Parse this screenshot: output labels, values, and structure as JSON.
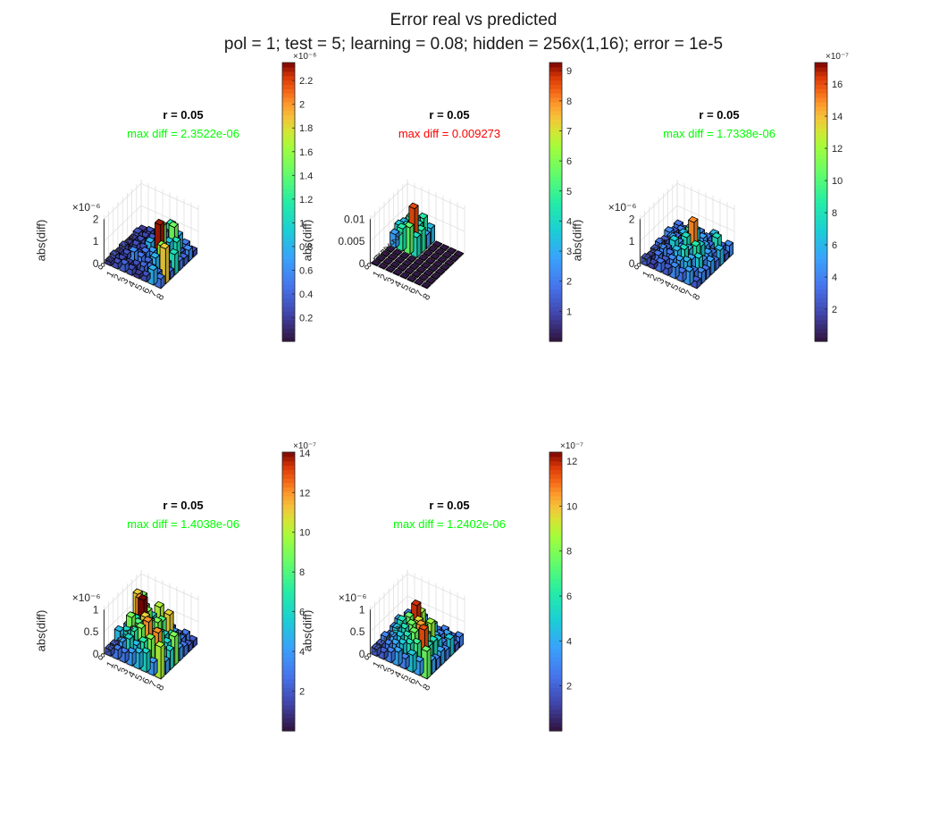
{
  "figure": {
    "title_line1": "Error real vs predicted",
    "title_line2": "pol = 1; test = 5; learning = 0.08; hidden = 256x(1,16); error = 1e-5"
  },
  "colors": {
    "title_black": "#000000",
    "maxdiff_ok": "#00ff00",
    "maxdiff_bad": "#ff0000",
    "axis_text": "#262626",
    "bar_edge": "#000000",
    "colormap": "turbo"
  },
  "chart_data": [
    {
      "type": "bar3",
      "title": "r = 0.05",
      "subtitle": "max diff = 2.3522e-06",
      "subtitle_color": "#00ff00",
      "zlabel": "abs(diff)",
      "z_exponent": "×10⁻⁶",
      "zticks": [
        "0",
        "1",
        "2"
      ],
      "xticks": [
        "1",
        "2",
        "3",
        "4",
        "5",
        "6",
        "7",
        "8"
      ],
      "yticks": [
        "1",
        "2",
        "3",
        "4",
        "5",
        "6",
        "7",
        "8"
      ],
      "zlim": [
        0,
        2.4
      ],
      "values_scale": "1e-6",
      "values": [
        [
          0.2,
          0.3,
          0.4,
          0.6,
          1.2,
          0.8,
          0.5,
          0.3
        ],
        [
          0.3,
          0.25,
          0.35,
          0.7,
          0.4,
          1.5,
          0.3,
          0.6
        ],
        [
          0.2,
          0.3,
          0.2,
          0.3,
          1.6,
          0.9,
          1.1,
          0.4
        ],
        [
          0.2,
          0.3,
          0.3,
          0.8,
          0.4,
          0.5,
          0.3,
          0.5
        ],
        [
          0.3,
          0.2,
          0.25,
          0.5,
          0.7,
          2.35,
          0.4,
          1.1
        ],
        [
          0.2,
          0.3,
          0.6,
          0.5,
          0.4,
          0.8,
          1.6,
          0.4
        ],
        [
          0.3,
          0.25,
          0.2,
          0.3,
          0.4,
          0.5,
          0.4,
          1.9
        ],
        [
          0.2,
          0.3,
          0.4,
          0.3,
          0.2,
          0.3,
          0.8,
          0.5
        ]
      ],
      "colorbar": {
        "min": 0,
        "max": 2.3522,
        "ticks": [
          "0.2",
          "0.4",
          "0.6",
          "0.8",
          "1",
          "1.2",
          "1.4",
          "1.6",
          "1.8",
          "2",
          "2.2"
        ],
        "exponent": "×10⁻⁶"
      }
    },
    {
      "type": "bar3",
      "title": "r = 0.05",
      "subtitle": "max diff = 0.009273",
      "subtitle_color": "#ff0000",
      "zlabel": "abs(diff)",
      "z_exponent": "",
      "zticks": [
        "0",
        "0.005",
        "0.01"
      ],
      "xticks": [
        "1",
        "2",
        "3",
        "4",
        "5",
        "6",
        "7",
        "8"
      ],
      "yticks": [
        "1",
        "2",
        "3",
        "4",
        "5",
        "6",
        "7",
        "8"
      ],
      "zlim": [
        0,
        0.01
      ],
      "values_scale": "1",
      "values": [
        [
          0.003,
          0.004,
          0.005,
          0.0035,
          0.0001,
          0.0001,
          0.0001,
          0.0001
        ],
        [
          0.0035,
          0.0055,
          0.0045,
          0.003,
          0.0001,
          0.0001,
          0.0001,
          0.0001
        ],
        [
          0.004,
          0.0045,
          0.009273,
          0.005,
          0.0001,
          0.0001,
          0.0001,
          0.0001
        ],
        [
          0.003,
          0.005,
          0.006,
          0.0045,
          0.0001,
          0.0001,
          0.0001,
          0.0001
        ],
        [
          0.0001,
          0.0001,
          0.0001,
          0.0001,
          0.0001,
          0.0001,
          0.0001,
          0.0001
        ],
        [
          0.0001,
          0.0001,
          0.0001,
          0.0001,
          0.0001,
          0.0001,
          0.0001,
          0.0001
        ],
        [
          0.0001,
          0.0001,
          0.0001,
          0.0001,
          0.0001,
          0.0001,
          0.0001,
          0.0001
        ],
        [
          0.0001,
          0.0001,
          0.0001,
          0.0001,
          0.0001,
          0.0001,
          0.0001,
          0.0001
        ]
      ],
      "colorbar": {
        "min": 0,
        "max": 9.273,
        "ticks": [
          "1",
          "2",
          "3",
          "4",
          "5",
          "6",
          "7",
          "8",
          "9"
        ],
        "exponent": ""
      }
    },
    {
      "type": "bar3",
      "title": "r = 0.05",
      "subtitle": "max diff = 1.7338e-06",
      "subtitle_color": "#00ff00",
      "zlabel": "abs(diff)",
      "z_exponent": "×10⁻⁶",
      "zticks": [
        "0",
        "1",
        "2"
      ],
      "xticks": [
        "1",
        "2",
        "3",
        "4",
        "5",
        "6",
        "7",
        "8"
      ],
      "yticks": [
        "1",
        "2",
        "3",
        "4",
        "5",
        "6",
        "7",
        "8"
      ],
      "zlim": [
        0,
        2.0
      ],
      "values_scale": "1e-6",
      "values": [
        [
          0.4,
          0.3,
          0.6,
          0.5,
          0.4,
          0.7,
          0.3,
          0.5
        ],
        [
          0.3,
          0.5,
          0.4,
          0.8,
          0.6,
          0.4,
          0.9,
          0.3
        ],
        [
          0.5,
          0.4,
          0.7,
          1.1,
          0.5,
          0.6,
          0.4,
          0.7
        ],
        [
          0.3,
          0.6,
          0.5,
          0.9,
          1.73,
          0.8,
          0.6,
          0.4
        ],
        [
          0.4,
          0.3,
          0.8,
          0.6,
          0.7,
          1.0,
          0.5,
          0.6
        ],
        [
          0.3,
          0.5,
          0.4,
          0.7,
          0.9,
          0.6,
          0.8,
          0.4
        ],
        [
          0.2,
          0.4,
          0.3,
          0.5,
          0.6,
          0.7,
          0.4,
          0.5
        ],
        [
          0.3,
          0.2,
          0.4,
          0.3,
          0.5,
          0.4,
          0.6,
          0.3
        ]
      ],
      "colorbar": {
        "min": 0,
        "max": 17.338,
        "ticks": [
          "2",
          "4",
          "6",
          "8",
          "10",
          "12",
          "14",
          "16"
        ],
        "exponent": "×10⁻⁷"
      }
    },
    {
      "type": "bar3",
      "title": "r = 0.05",
      "subtitle": "max diff = 1.4038e-06",
      "subtitle_color": "#00ff00",
      "zlabel": "abs(diff)",
      "z_exponent": "×10⁻⁶",
      "zticks": [
        "0",
        "0.5",
        "1"
      ],
      "xticks": [
        "1",
        "2",
        "3",
        "4",
        "5",
        "6",
        "7",
        "8"
      ],
      "yticks": [
        "1",
        "2",
        "3",
        "4",
        "5",
        "6",
        "7",
        "8"
      ],
      "zlim": [
        0,
        1.4
      ],
      "values_scale": "1e-6",
      "values": [
        [
          0.9,
          0.3,
          0.2,
          0.4,
          0.3,
          0.2,
          0.3,
          0.2
        ],
        [
          1.1,
          0.8,
          0.6,
          1.0,
          0.7,
          0.4,
          0.3,
          0.2
        ],
        [
          0.5,
          1.2,
          0.9,
          0.6,
          0.8,
          1.1,
          0.5,
          0.3
        ],
        [
          0.4,
          0.7,
          1.4,
          0.8,
          0.9,
          0.6,
          0.7,
          0.4
        ],
        [
          0.3,
          0.9,
          0.8,
          1.1,
          0.7,
          0.8,
          0.6,
          0.9
        ],
        [
          0.5,
          0.6,
          0.7,
          0.9,
          1.2,
          0.8,
          0.5,
          0.6
        ],
        [
          0.2,
          0.4,
          0.6,
          0.5,
          0.7,
          0.9,
          1.2,
          0.4
        ],
        [
          0.2,
          0.3,
          0.3,
          0.4,
          0.5,
          0.6,
          0.4,
          1.0
        ]
      ],
      "colorbar": {
        "min": 0,
        "max": 14.038,
        "ticks": [
          "2",
          "4",
          "6",
          "8",
          "10",
          "12",
          "14"
        ],
        "exponent": "×10⁻⁷"
      }
    },
    {
      "type": "bar3",
      "title": "r = 0.05",
      "subtitle": "max diff = 1.2402e-06",
      "subtitle_color": "#00ff00",
      "zlabel": "abs(diff)",
      "z_exponent": "×10⁻⁶",
      "zticks": [
        "0",
        "0.5",
        "1"
      ],
      "xticks": [
        "1",
        "2",
        "3",
        "4",
        "5",
        "6",
        "7",
        "8"
      ],
      "yticks": [
        "1",
        "2",
        "3",
        "4",
        "5",
        "6",
        "7",
        "8"
      ],
      "zlim": [
        0,
        1.3
      ],
      "values_scale": "1e-6",
      "values": [
        [
          0.3,
          0.2,
          0.4,
          0.3,
          0.2,
          0.3,
          0.2,
          0.3
        ],
        [
          0.2,
          0.4,
          0.6,
          0.3,
          0.5,
          0.3,
          0.4,
          0.2
        ],
        [
          0.4,
          0.3,
          0.7,
          0.9,
          0.6,
          0.4,
          0.3,
          0.5
        ],
        [
          0.3,
          0.6,
          0.8,
          1.24,
          0.7,
          0.9,
          0.5,
          0.3
        ],
        [
          0.2,
          0.5,
          0.6,
          0.8,
          1.0,
          0.7,
          0.6,
          0.4
        ],
        [
          0.3,
          0.4,
          0.5,
          0.6,
          0.8,
          1.1,
          0.6,
          0.3
        ],
        [
          0.2,
          0.3,
          0.4,
          0.5,
          0.6,
          0.7,
          1.2,
          0.4
        ],
        [
          0.2,
          0.2,
          0.3,
          0.4,
          0.3,
          0.5,
          0.4,
          0.8
        ]
      ],
      "colorbar": {
        "min": 0,
        "max": 12.402,
        "ticks": [
          "2",
          "4",
          "6",
          "8",
          "10",
          "12"
        ],
        "exponent": "×10⁻⁷"
      }
    }
  ]
}
